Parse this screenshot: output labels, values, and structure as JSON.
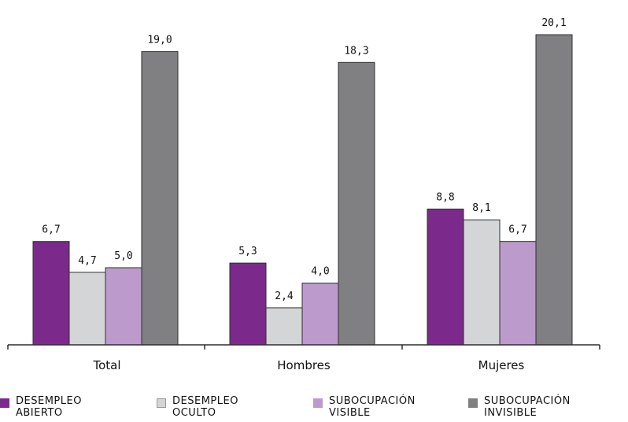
{
  "chart_data": {
    "type": "bar",
    "categories": [
      "Total",
      "Hombres",
      "Mujeres"
    ],
    "series": [
      {
        "name": "DESEMPLEO ABIERTO",
        "values": [
          6.7,
          5.3,
          8.8
        ],
        "labels": [
          "6,7",
          "5,3",
          "8,8"
        ],
        "color": "#7b2a8c"
      },
      {
        "name": "DESEMPLEO OCULTO",
        "values": [
          4.7,
          2.4,
          8.1
        ],
        "labels": [
          "4,7",
          "2,4",
          "8,1"
        ],
        "color": "#d4d5d7"
      },
      {
        "name": "SUBOCUPACIÓN VISIBLE",
        "values": [
          5.0,
          4.0,
          6.7
        ],
        "labels": [
          "5,0",
          "4,0",
          "6,7"
        ],
        "color": "#bd9acc"
      },
      {
        "name": "SUBOCUPACIÓN INVISIBLE",
        "values": [
          19.0,
          18.3,
          20.1
        ],
        "labels": [
          "19,0",
          "18,3",
          "20,1"
        ],
        "color": "#808083"
      }
    ],
    "ylim": [
      0,
      22
    ],
    "grid": false,
    "legend_position": "bottom"
  },
  "legend": [
    {
      "line1": "DESEMPLEO",
      "line2": "ABIERTO",
      "color": "#7b2a8c"
    },
    {
      "line1": "DESEMPLEO",
      "line2": "OCULTO",
      "color": "#d4d5d7"
    },
    {
      "line1": "SUBOCUPACIÓN",
      "line2": "VISIBLE",
      "color": "#bd9acc"
    },
    {
      "line1": "SUBOCUPACIÓN",
      "line2": "INVISIBLE",
      "color": "#808083"
    }
  ]
}
